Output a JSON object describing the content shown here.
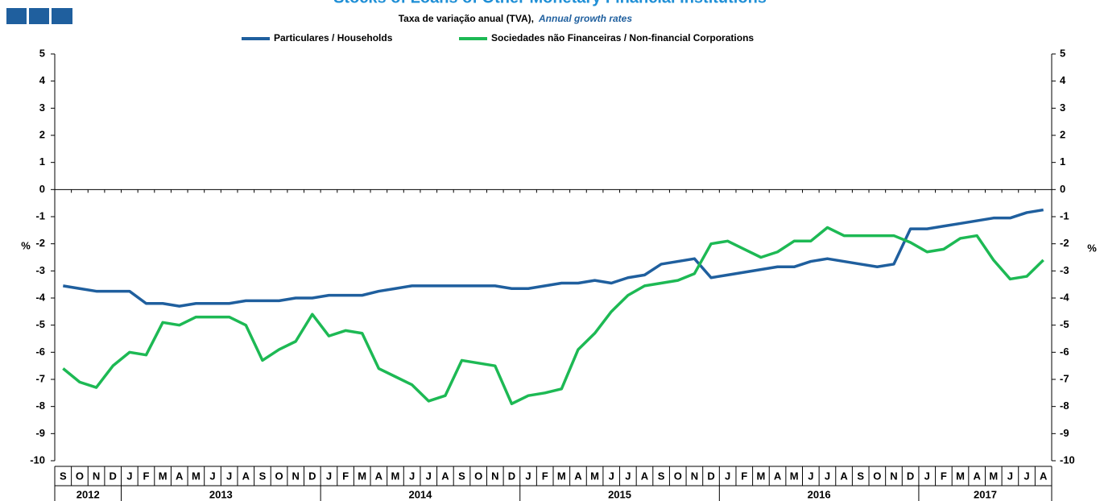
{
  "chart_data": {
    "type": "line",
    "title": "Stocks of Loans of Other Monetary Financial Institutions",
    "subtitle": "Taxa de variação anual (TVA),",
    "subtitle_en": "Annual growth rates",
    "ylabel": "%",
    "y2label": "%",
    "categories": [
      "S",
      "O",
      "N",
      "D",
      "J",
      "F",
      "M",
      "A",
      "M",
      "J",
      "J",
      "A",
      "S",
      "O",
      "N",
      "D",
      "J",
      "F",
      "M",
      "A",
      "M",
      "J",
      "J",
      "A",
      "S",
      "O",
      "N",
      "D",
      "J",
      "F",
      "M",
      "A",
      "M",
      "J",
      "J",
      "A",
      "S",
      "O",
      "N",
      "D",
      "J",
      "F",
      "M",
      "A",
      "M",
      "J",
      "J",
      "A",
      "S",
      "O",
      "N",
      "D",
      "J",
      "F",
      "M",
      "A",
      "M",
      "J",
      "J",
      "A"
    ],
    "years": [
      "2012",
      "2013",
      "2014",
      "2015",
      "2016",
      "2017"
    ],
    "series": [
      {
        "name": "Particulares / Households",
        "color": "#1f5f9e",
        "values": [
          -3.55,
          -3.65,
          -3.75,
          -3.75,
          -3.75,
          -4.2,
          -4.2,
          -4.3,
          -4.2,
          -4.2,
          -4.2,
          -4.1,
          -4.1,
          -4.1,
          -4.0,
          -4.0,
          -3.9,
          -3.9,
          -3.9,
          -3.75,
          -3.65,
          -3.55,
          -3.55,
          -3.55,
          -3.55,
          -3.55,
          -3.55,
          -3.65,
          -3.65,
          -3.55,
          -3.45,
          -3.45,
          -3.35,
          -3.45,
          -3.25,
          -3.15,
          -2.75,
          -2.65,
          -2.55,
          -3.25,
          -3.15,
          -3.05,
          -2.95,
          -2.85,
          -2.85,
          -2.65,
          -2.55,
          -2.65,
          -2.75,
          -2.85,
          -2.75,
          -1.45,
          -1.45,
          -1.35,
          -1.25,
          -1.15,
          -1.05,
          -1.05,
          -0.85,
          -0.75
        ]
      },
      {
        "name": "Sociedades não Financeiras / Non-financial Corporations",
        "color": "#1db954",
        "values": [
          -6.6,
          -7.1,
          -7.3,
          -6.5,
          -6.0,
          -6.1,
          -4.9,
          -5.0,
          -4.7,
          -4.7,
          -4.7,
          -5.0,
          -6.3,
          -5.9,
          -5.6,
          -4.6,
          -5.4,
          -5.2,
          -5.3,
          -6.6,
          -6.9,
          -7.2,
          -7.8,
          -7.6,
          -6.3,
          -6.4,
          -6.5,
          -7.9,
          -7.6,
          -7.5,
          -7.35,
          -5.9,
          -5.3,
          -4.5,
          -3.9,
          -3.55,
          -3.45,
          -3.35,
          -3.1,
          -2.0,
          -1.9,
          -2.2,
          -2.5,
          -2.3,
          -1.9,
          -1.9,
          -1.4,
          -1.7,
          -1.7,
          -1.7,
          -1.7,
          -1.95,
          -2.3,
          -2.2,
          -1.8,
          -1.7,
          -2.6,
          -3.3,
          -3.2,
          -2.6
        ]
      }
    ],
    "ylim": [
      -10,
      5
    ],
    "yticks": [
      -10,
      -9,
      -8,
      -7,
      -6,
      -5,
      -4,
      -3,
      -2,
      -1,
      0,
      1,
      2,
      3,
      4,
      5
    ],
    "grid": false,
    "legend": "top"
  }
}
